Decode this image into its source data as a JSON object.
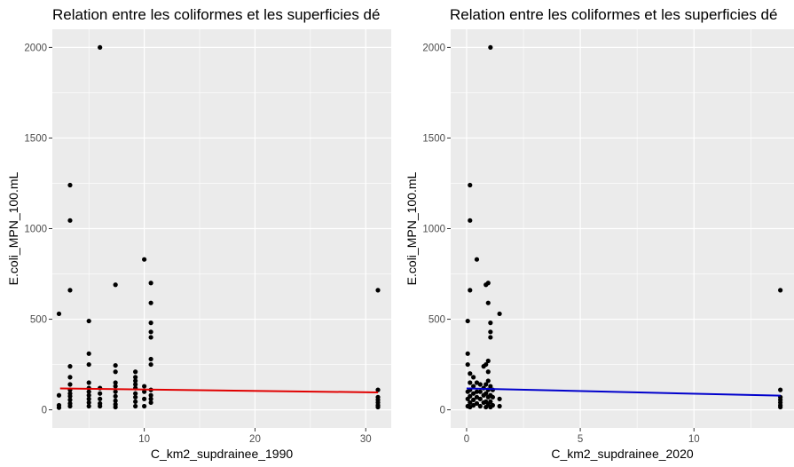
{
  "chart_data": [
    {
      "type": "scatter",
      "title": "Relation entre les coliformes et les superficies dé",
      "xlabel": "C_km2_supdrainee_1990",
      "ylabel": "E.coli_MPN_100.mL",
      "xlim": [
        1.7,
        32.3
      ],
      "ylim": [
        -100,
        2100
      ],
      "x_ticks": [
        10,
        20,
        30
      ],
      "x_tick_labels": [
        "10",
        "20",
        "30"
      ],
      "y_ticks": [
        0,
        500,
        1000,
        1500,
        2000
      ],
      "y_tick_labels": [
        "0",
        "500",
        "1000",
        "1500",
        "2000"
      ],
      "grid": true,
      "background": "#ebebeb",
      "grid_color": "#ffffff",
      "point_color": "#000000",
      "fit_line": {
        "color": "#e00000",
        "x": [
          2.4,
          31.1
        ],
        "y": [
          118,
          96
        ]
      },
      "points": [
        [
          2.3,
          530
        ],
        [
          2.3,
          80
        ],
        [
          2.3,
          25
        ],
        [
          2.3,
          12
        ],
        [
          3.3,
          1240
        ],
        [
          3.3,
          1045
        ],
        [
          3.3,
          660
        ],
        [
          3.3,
          240
        ],
        [
          3.3,
          180
        ],
        [
          3.3,
          140
        ],
        [
          3.3,
          110
        ],
        [
          3.3,
          90
        ],
        [
          3.3,
          75
        ],
        [
          3.3,
          55
        ],
        [
          3.3,
          35
        ],
        [
          3.3,
          20
        ],
        [
          5.0,
          490
        ],
        [
          5.0,
          310
        ],
        [
          5.0,
          250
        ],
        [
          5.0,
          150
        ],
        [
          5.0,
          120
        ],
        [
          5.0,
          100
        ],
        [
          5.0,
          80
        ],
        [
          5.0,
          60
        ],
        [
          5.0,
          40
        ],
        [
          5.0,
          20
        ],
        [
          6.0,
          2000
        ],
        [
          6.0,
          120
        ],
        [
          6.0,
          90
        ],
        [
          6.0,
          60
        ],
        [
          6.0,
          35
        ],
        [
          6.0,
          20
        ],
        [
          7.4,
          690
        ],
        [
          7.4,
          245
        ],
        [
          7.4,
          210
        ],
        [
          7.4,
          150
        ],
        [
          7.4,
          130
        ],
        [
          7.4,
          100
        ],
        [
          7.4,
          75
        ],
        [
          7.4,
          50
        ],
        [
          7.4,
          30
        ],
        [
          7.4,
          15
        ],
        [
          9.2,
          210
        ],
        [
          9.2,
          180
        ],
        [
          9.2,
          160
        ],
        [
          9.2,
          140
        ],
        [
          9.2,
          120
        ],
        [
          9.2,
          90
        ],
        [
          9.2,
          70
        ],
        [
          9.2,
          45
        ],
        [
          9.2,
          20
        ],
        [
          10.0,
          830
        ],
        [
          10.0,
          130
        ],
        [
          10.0,
          100
        ],
        [
          10.0,
          60
        ],
        [
          10.0,
          20
        ],
        [
          10.6,
          700
        ],
        [
          10.6,
          590
        ],
        [
          10.6,
          480
        ],
        [
          10.6,
          430
        ],
        [
          10.6,
          400
        ],
        [
          10.6,
          280
        ],
        [
          10.6,
          250
        ],
        [
          10.6,
          110
        ],
        [
          10.6,
          80
        ],
        [
          10.6,
          60
        ],
        [
          10.6,
          40
        ],
        [
          31.1,
          660
        ],
        [
          31.1,
          110
        ],
        [
          31.1,
          70
        ],
        [
          31.1,
          55
        ],
        [
          31.1,
          40
        ],
        [
          31.1,
          25
        ],
        [
          31.1,
          15
        ]
      ]
    },
    {
      "type": "scatter",
      "title": "Relation entre les coliformes et les superficies dé",
      "xlabel": "C_km2_supdrainee_2020",
      "ylabel": "E.coli_MPN_100.mL",
      "xlim": [
        -0.7,
        14.4
      ],
      "ylim": [
        -100,
        2100
      ],
      "x_ticks": [
        0,
        5,
        10
      ],
      "x_tick_labels": [
        "0",
        "5",
        "10"
      ],
      "y_ticks": [
        0,
        500,
        1000,
        1500,
        2000
      ],
      "y_tick_labels": [
        "0",
        "500",
        "1000",
        "1500",
        "2000"
      ],
      "grid": true,
      "background": "#ebebeb",
      "grid_color": "#ffffff",
      "point_color": "#000000",
      "fit_line": {
        "color": "#0000cc",
        "x": [
          0.0,
          13.8
        ],
        "y": [
          118,
          78
        ]
      },
      "points": [
        [
          0.05,
          490
        ],
        [
          0.05,
          310
        ],
        [
          0.05,
          250
        ],
        [
          0.05,
          100
        ],
        [
          0.05,
          60
        ],
        [
          0.05,
          20
        ],
        [
          0.15,
          1240
        ],
        [
          0.15,
          1045
        ],
        [
          0.15,
          660
        ],
        [
          0.15,
          200
        ],
        [
          0.15,
          150
        ],
        [
          0.15,
          110
        ],
        [
          0.15,
          75
        ],
        [
          0.15,
          40
        ],
        [
          0.15,
          15
        ],
        [
          0.3,
          180
        ],
        [
          0.3,
          130
        ],
        [
          0.3,
          90
        ],
        [
          0.3,
          55
        ],
        [
          0.3,
          25
        ],
        [
          0.45,
          830
        ],
        [
          0.45,
          150
        ],
        [
          0.45,
          100
        ],
        [
          0.45,
          70
        ],
        [
          0.45,
          35
        ],
        [
          0.6,
          140
        ],
        [
          0.6,
          100
        ],
        [
          0.6,
          60
        ],
        [
          0.6,
          20
        ],
        [
          0.75,
          240
        ],
        [
          0.75,
          120
        ],
        [
          0.75,
          80
        ],
        [
          0.75,
          40
        ],
        [
          0.85,
          690
        ],
        [
          0.85,
          250
        ],
        [
          0.85,
          140
        ],
        [
          0.85,
          90
        ],
        [
          0.85,
          45
        ],
        [
          0.85,
          15
        ],
        [
          0.95,
          700
        ],
        [
          0.95,
          590
        ],
        [
          0.95,
          270
        ],
        [
          0.95,
          210
        ],
        [
          0.95,
          160
        ],
        [
          0.95,
          110
        ],
        [
          0.95,
          70
        ],
        [
          0.95,
          30
        ],
        [
          1.05,
          2000
        ],
        [
          1.05,
          480
        ],
        [
          1.05,
          430
        ],
        [
          1.05,
          400
        ],
        [
          1.05,
          130
        ],
        [
          1.05,
          80
        ],
        [
          1.05,
          45
        ],
        [
          1.05,
          15
        ],
        [
          1.15,
          110
        ],
        [
          1.15,
          70
        ],
        [
          1.15,
          25
        ],
        [
          1.45,
          530
        ],
        [
          1.45,
          60
        ],
        [
          1.45,
          20
        ],
        [
          13.8,
          660
        ],
        [
          13.8,
          110
        ],
        [
          13.8,
          70
        ],
        [
          13.8,
          55
        ],
        [
          13.8,
          40
        ],
        [
          13.8,
          25
        ],
        [
          13.8,
          15
        ]
      ]
    }
  ]
}
